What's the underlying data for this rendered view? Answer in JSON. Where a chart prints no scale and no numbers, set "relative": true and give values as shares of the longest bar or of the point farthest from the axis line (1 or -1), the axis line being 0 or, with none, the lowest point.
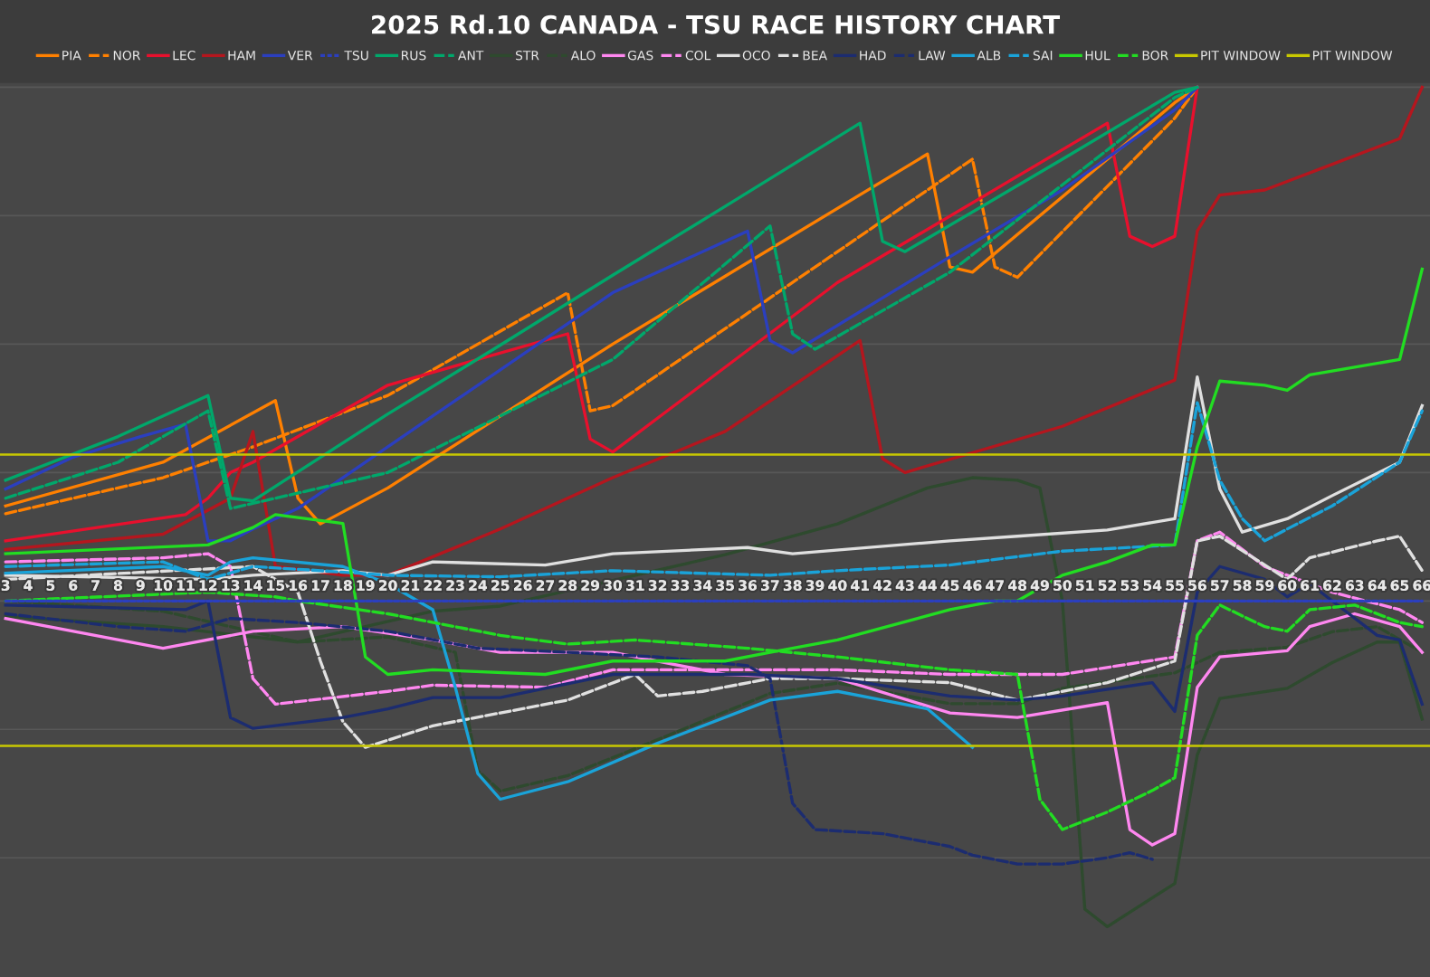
{
  "chart_data": {
    "type": "line",
    "title": "2025 Rd.10 CANADA - TSU RACE HISTORY CHART",
    "relative": true,
    "grid": "y",
    "legend": "top",
    "marker": "none",
    "xlim": [
      2.75,
      66.35
    ],
    "xticks": [
      3,
      4,
      5,
      6,
      7,
      8,
      9,
      10,
      11,
      12,
      13,
      14,
      15,
      16,
      17,
      18,
      19,
      20,
      21,
      22,
      23,
      24,
      25,
      26,
      27,
      28,
      29,
      30,
      31,
      32,
      33,
      34,
      35,
      36,
      37,
      38,
      39,
      40,
      41,
      42,
      43,
      44,
      45,
      46,
      47,
      48,
      49,
      50,
      51,
      52,
      53,
      54,
      55,
      56,
      57,
      58,
      59,
      60,
      61,
      62,
      63,
      64,
      65,
      66
    ],
    "ref_lines": [
      {
        "axis": "y",
        "value": 0.285,
        "label": "PIT WINDOW",
        "color": "#c8c800",
        "line_style": "solid"
      },
      {
        "axis": "y",
        "value": -0.282,
        "label": "PIT WINDOW",
        "color": "#c8c800",
        "line_style": "solid"
      }
    ],
    "series": [
      {
        "name": "PIA",
        "color": "#ff8000",
        "line_style": "solid",
        "x": [
          3,
          10,
          15,
          16,
          17,
          20,
          30,
          44,
          45,
          46,
          55,
          56
        ],
        "values": [
          0.185,
          0.27,
          0.39,
          0.2,
          0.15,
          0.22,
          0.5,
          0.87,
          0.65,
          0.64,
          0.97,
          1
        ]
      },
      {
        "name": "NOR",
        "color": "#ff8000",
        "line_style": "dashed",
        "x": [
          3,
          10,
          14,
          20,
          28,
          29,
          30,
          46,
          47,
          48,
          55,
          56
        ],
        "values": [
          0.17,
          0.24,
          0.3,
          0.4,
          0.6,
          0.37,
          0.38,
          0.86,
          0.65,
          0.63,
          0.94,
          1
        ]
      },
      {
        "name": "LEC",
        "color": "#e8102d",
        "line_style": "solid",
        "x": [
          3,
          11,
          12,
          13,
          14,
          20,
          28,
          29,
          30,
          40,
          52,
          53,
          54,
          55,
          56
        ],
        "values": [
          0.117,
          0.168,
          0.2,
          0.25,
          0.27,
          0.42,
          0.52,
          0.315,
          0.29,
          0.62,
          0.93,
          0.71,
          0.69,
          0.71,
          1
        ]
      },
      {
        "name": "HAM",
        "color": "#b5161e",
        "line_style": "solid",
        "x": [
          3,
          10,
          13,
          14,
          15,
          18,
          20,
          25,
          30,
          35,
          41,
          42,
          43,
          50,
          55,
          56,
          57,
          59,
          62,
          65,
          66
        ],
        "values": [
          0.1,
          0.13,
          0.2,
          0.33,
          0.067,
          0.05,
          0.05,
          0.14,
          0.24,
          0.33,
          0.507,
          0.277,
          0.25,
          0.34,
          0.43,
          0.72,
          0.79,
          0.8,
          0.85,
          0.9,
          1
        ]
      },
      {
        "name": "VER",
        "color": "#2b3fbf",
        "line_style": "solid",
        "x": [
          3,
          6,
          9,
          11,
          12,
          13,
          14,
          16,
          20,
          25,
          30,
          33,
          36,
          37,
          38,
          45,
          50,
          55,
          56
        ],
        "values": [
          0.218,
          0.28,
          0.32,
          0.344,
          0.117,
          0.117,
          0.14,
          0.18,
          0.3,
          0.45,
          0.6,
          0.66,
          0.72,
          0.507,
          0.483,
          0.67,
          0.8,
          0.956,
          1
        ]
      },
      {
        "name": "TSU",
        "color": "#2b3fbf",
        "line_style": "dotted",
        "x": [
          3,
          66
        ],
        "values": [
          0,
          0
        ]
      },
      {
        "name": "RUS",
        "color": "#00a86b",
        "line_style": "solid",
        "x": [
          3,
          8,
          12,
          13,
          14,
          20,
          25,
          30,
          35,
          41,
          42,
          43,
          50,
          55,
          56
        ],
        "values": [
          0.235,
          0.32,
          0.4,
          0.2,
          0.195,
          0.364,
          0.498,
          0.634,
          0.768,
          0.93,
          0.7,
          0.68,
          0.86,
          0.99,
          1
        ]
      },
      {
        "name": "ANT",
        "color": "#00a86b",
        "line_style": "dashed",
        "x": [
          3,
          8,
          12,
          13,
          14,
          20,
          30,
          37,
          38,
          39,
          45,
          55,
          56
        ],
        "values": [
          0.2,
          0.27,
          0.37,
          0.18,
          0.19,
          0.25,
          0.47,
          0.73,
          0.52,
          0.49,
          0.64,
          0.98,
          1
        ]
      },
      {
        "name": "STR",
        "color": "#2e4a2e",
        "line_style": "solid",
        "x": [
          3,
          10,
          16,
          22,
          25,
          30,
          35,
          40,
          44,
          46,
          48,
          49,
          50,
          51,
          52,
          55,
          56,
          57,
          60,
          62,
          64,
          65,
          66
        ],
        "values": [
          -0.03,
          -0.05,
          -0.08,
          -0.02,
          -0.01,
          0.04,
          0.09,
          0.15,
          0.22,
          0.24,
          0.235,
          0.22,
          0,
          -0.6,
          -0.634,
          -0.55,
          -0.3,
          -0.19,
          -0.17,
          -0.12,
          -0.08,
          -0.08,
          -0.23
        ]
      },
      {
        "name": "ALO",
        "color": "#2e4a2e",
        "line_style": "dashed",
        "x": [
          3,
          10,
          13,
          16,
          20,
          23,
          24,
          25,
          28,
          32,
          37,
          40,
          45,
          48,
          50,
          55,
          57,
          60,
          62,
          64,
          66
        ],
        "values": [
          0,
          -0.02,
          -0.05,
          -0.08,
          -0.07,
          -0.1,
          -0.33,
          -0.37,
          -0.34,
          -0.27,
          -0.18,
          -0.16,
          -0.2,
          -0.2,
          -0.17,
          -0.14,
          -0.1,
          -0.09,
          -0.06,
          -0.05,
          -0.1
        ]
      },
      {
        "name": "GAS",
        "color": "#ff87f0",
        "line_style": "solid",
        "x": [
          3,
          10,
          14,
          18,
          22,
          25,
          30,
          35,
          40,
          45,
          48,
          52,
          53,
          54,
          55,
          56,
          57,
          60,
          61,
          63,
          65,
          66
        ],
        "values": [
          -0.034,
          -0.092,
          -0.059,
          -0.05,
          -0.076,
          -0.1,
          -0.1,
          -0.143,
          -0.151,
          -0.218,
          -0.227,
          -0.198,
          -0.445,
          -0.475,
          -0.453,
          -0.168,
          -0.109,
          -0.097,
          -0.05,
          -0.025,
          -0.05,
          -0.1
        ]
      },
      {
        "name": "COL",
        "color": "#ff87f0",
        "line_style": "dashed",
        "x": [
          3,
          10,
          12,
          13,
          14,
          15,
          20,
          22,
          27,
          30,
          35,
          40,
          45,
          50,
          55,
          56,
          57,
          59,
          60,
          62,
          65,
          66
        ],
        "values": [
          0.076,
          0.084,
          0.092,
          0.067,
          -0.151,
          -0.201,
          -0.176,
          -0.164,
          -0.168,
          -0.134,
          -0.134,
          -0.134,
          -0.143,
          -0.143,
          -0.109,
          0.117,
          0.134,
          0.067,
          0.05,
          0.017,
          -0.017,
          -0.042
        ]
      },
      {
        "name": "OCO",
        "color": "#e0e0e0",
        "line_style": "solid",
        "x": [
          3,
          12,
          14,
          18,
          20,
          22,
          27,
          30,
          36,
          38,
          45,
          48,
          52,
          55,
          56,
          57,
          58,
          60,
          62,
          65,
          66
        ],
        "values": [
          0.05,
          0.042,
          0.05,
          0.059,
          0.05,
          0.076,
          0.07,
          0.092,
          0.104,
          0.092,
          0.117,
          0.126,
          0.138,
          0.16,
          0.436,
          0.218,
          0.134,
          0.16,
          0.205,
          0.27,
          0.38
        ]
      },
      {
        "name": "BEA",
        "color": "#e0e0e0",
        "line_style": "dashed",
        "x": [
          3,
          14,
          16,
          17,
          18,
          19,
          22,
          25,
          28,
          31,
          32,
          34,
          37,
          40,
          45,
          48,
          52,
          55,
          56,
          57,
          60,
          61,
          64,
          65,
          66
        ],
        "values": [
          0.042,
          0.067,
          0.017,
          -0.117,
          -0.235,
          -0.285,
          -0.243,
          -0.218,
          -0.193,
          -0.143,
          -0.185,
          -0.176,
          -0.151,
          -0.151,
          -0.159,
          -0.193,
          -0.159,
          -0.117,
          0.117,
          0.126,
          0.042,
          0.084,
          0.117,
          0.126,
          0.059
        ]
      },
      {
        "name": "HAD",
        "color": "#1c2c70",
        "line_style": "solid",
        "x": [
          3,
          11,
          12,
          13,
          14,
          18,
          20,
          22,
          25,
          30,
          36,
          40,
          45,
          48,
          50,
          54,
          55,
          56,
          57,
          59,
          60,
          61,
          62,
          64,
          65,
          66
        ],
        "values": [
          -0.008,
          -0.017,
          0,
          -0.227,
          -0.248,
          -0.227,
          -0.21,
          -0.188,
          -0.188,
          -0.143,
          -0.143,
          -0.151,
          -0.185,
          -0.193,
          -0.185,
          -0.159,
          -0.215,
          0.017,
          0.067,
          0.042,
          0.008,
          0.034,
          0,
          -0.067,
          -0.076,
          -0.201
        ]
      },
      {
        "name": "LAW",
        "color": "#1c2c70",
        "line_style": "dashed",
        "x": [
          3,
          8,
          11,
          13,
          16,
          20,
          24,
          28,
          32,
          36,
          37,
          38,
          39,
          42,
          45,
          46,
          48,
          50,
          52,
          53,
          54
        ],
        "values": [
          -0.025,
          -0.05,
          -0.059,
          -0.034,
          -0.042,
          -0.059,
          -0.092,
          -0.1,
          -0.109,
          -0.126,
          -0.151,
          -0.394,
          -0.445,
          -0.453,
          -0.478,
          -0.495,
          -0.512,
          -0.512,
          -0.5,
          -0.49,
          -0.503
        ]
      },
      {
        "name": "ALB",
        "color": "#1aa3d9",
        "line_style": "solid",
        "x": [
          3,
          10,
          12,
          13,
          14,
          18,
          20,
          22,
          23,
          24,
          25,
          28,
          32,
          37,
          40,
          42,
          44,
          46
        ],
        "values": [
          0.054,
          0.067,
          0.05,
          0.076,
          0.084,
          0.067,
          0.034,
          -0.017,
          -0.168,
          -0.336,
          -0.386,
          -0.352,
          -0.277,
          -0.193,
          -0.176,
          -0.193,
          -0.21,
          -0.285
        ]
      },
      {
        "name": "SAI",
        "color": "#1aa3d9",
        "line_style": "dashed",
        "x": [
          3,
          10,
          12,
          14,
          17,
          20,
          25,
          30,
          37,
          40,
          45,
          50,
          55,
          56,
          57,
          58,
          59,
          60,
          62,
          65,
          66
        ],
        "values": [
          0.067,
          0.076,
          0.042,
          0.067,
          0.059,
          0.05,
          0.047,
          0.059,
          0.05,
          0.059,
          0.07,
          0.097,
          0.109,
          0.386,
          0.235,
          0.16,
          0.117,
          0.14,
          0.185,
          0.27,
          0.37
        ]
      },
      {
        "name": "HUL",
        "color": "#22dd22",
        "line_style": "solid",
        "x": [
          3,
          12,
          14,
          15,
          18,
          19,
          20,
          22,
          27,
          30,
          35,
          37,
          40,
          45,
          47,
          48,
          50,
          52,
          54,
          55,
          56,
          57,
          59,
          60,
          61,
          63,
          65,
          66
        ],
        "values": [
          0.092,
          0.109,
          0.143,
          0.168,
          0.151,
          -0.109,
          -0.143,
          -0.134,
          -0.143,
          -0.117,
          -0.117,
          -0.1,
          -0.076,
          -0.017,
          0,
          0,
          0.05,
          0.076,
          0.109,
          0.109,
          0.3,
          0.428,
          0.42,
          0.41,
          0.44,
          0.455,
          0.47,
          0.646
        ]
      },
      {
        "name": "BOR",
        "color": "#22dd22",
        "line_style": "dashed",
        "x": [
          3,
          12,
          15,
          16,
          20,
          25,
          28,
          31,
          36,
          40,
          45,
          48,
          49,
          50,
          52,
          54,
          55,
          56,
          57,
          59,
          60,
          61,
          63,
          65,
          66
        ],
        "values": [
          0,
          0.017,
          0.008,
          0,
          -0.025,
          -0.067,
          -0.084,
          -0.076,
          -0.092,
          -0.109,
          -0.134,
          -0.143,
          -0.386,
          -0.445,
          -0.411,
          -0.369,
          -0.344,
          -0.067,
          -0.008,
          -0.05,
          -0.059,
          -0.017,
          -0.008,
          -0.042,
          -0.05
        ]
      }
    ]
  }
}
